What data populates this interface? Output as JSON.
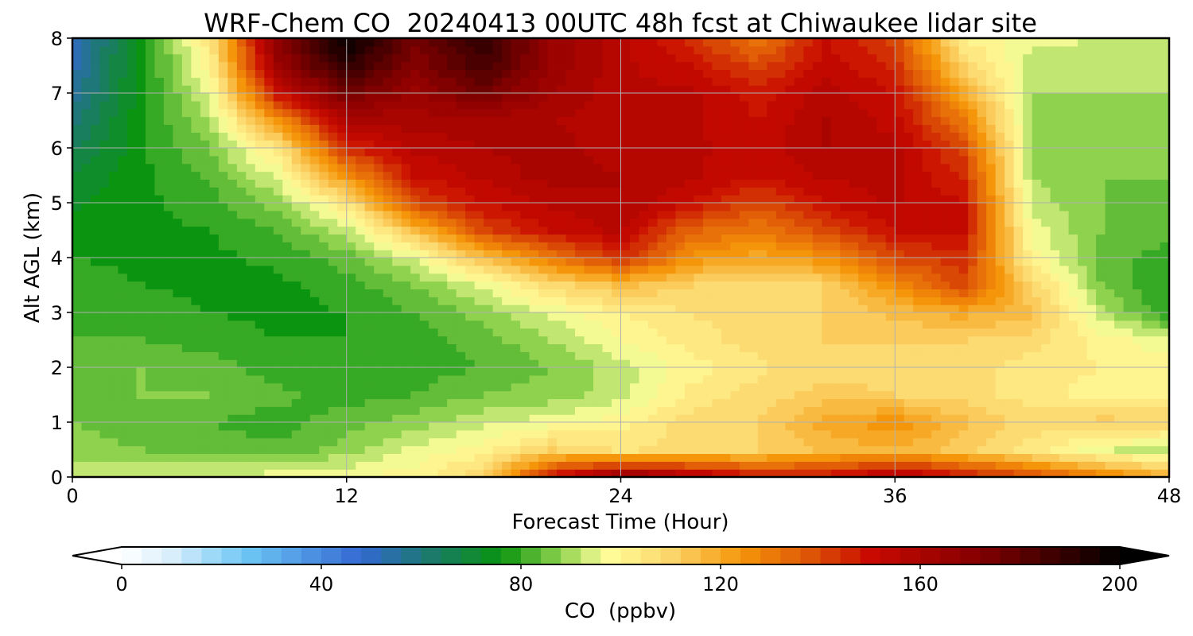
{
  "chart_data": {
    "type": "heatmap",
    "title": "WRF-Chem CO  20240413 00UTC 48h fcst at Chiwaukee lidar site",
    "xlabel": "Forecast Time (Hour)",
    "ylabel": "Alt AGL (km)",
    "xlim": [
      0,
      48
    ],
    "ylim": [
      0,
      8
    ],
    "x_ticks": [
      "0",
      "12",
      "24",
      "36",
      "48"
    ],
    "y_ticks": [
      "0",
      "1",
      "2",
      "3",
      "4",
      "5",
      "6",
      "7",
      "8"
    ],
    "grid": true,
    "x": [
      0,
      3,
      6,
      9,
      12,
      15,
      18,
      21,
      24,
      27,
      30,
      33,
      36,
      39,
      42,
      45,
      48
    ],
    "y": [
      0,
      0.5,
      1,
      1.5,
      2,
      2.5,
      3,
      3.5,
      4,
      4.5,
      5,
      5.5,
      6,
      6.5,
      7,
      7.5,
      8
    ],
    "z": [
      [
        95,
        95,
        95,
        96,
        98,
        100,
        110,
        150,
        170,
        160,
        150,
        150,
        160,
        150,
        140,
        130,
        120
      ],
      [
        88,
        86,
        84,
        83,
        88,
        95,
        100,
        110,
        105,
        108,
        110,
        115,
        118,
        112,
        104,
        95,
        90
      ],
      [
        86,
        84,
        82,
        80,
        84,
        88,
        93,
        96,
        100,
        108,
        110,
        120,
        125,
        115,
        108,
        112,
        110
      ],
      [
        84,
        86,
        86,
        83,
        80,
        82,
        86,
        88,
        92,
        103,
        108,
        112,
        110,
        108,
        104,
        100,
        102
      ],
      [
        84,
        86,
        84,
        80,
        78,
        80,
        82,
        86,
        92,
        100,
        105,
        108,
        108,
        108,
        104,
        102,
        100
      ],
      [
        82,
        82,
        80,
        78,
        78,
        80,
        84,
        90,
        98,
        104,
        108,
        110,
        110,
        110,
        108,
        100,
        95
      ],
      [
        82,
        80,
        78,
        77,
        78,
        82,
        88,
        95,
        102,
        106,
        108,
        110,
        115,
        120,
        115,
        92,
        78
      ],
      [
        80,
        78,
        77,
        77,
        80,
        86,
        95,
        108,
        115,
        110,
        108,
        110,
        125,
        140,
        110,
        86,
        78
      ],
      [
        78,
        77,
        77,
        79,
        84,
        95,
        115,
        130,
        145,
        125,
        120,
        125,
        140,
        145,
        100,
        84,
        80
      ],
      [
        77,
        77,
        78,
        82,
        92,
        115,
        140,
        150,
        155,
        135,
        130,
        140,
        150,
        150,
        96,
        86,
        84
      ],
      [
        73,
        77,
        80,
        88,
        105,
        140,
        150,
        155,
        158,
        150,
        140,
        150,
        155,
        150,
        92,
        86,
        85
      ],
      [
        70,
        77,
        83,
        95,
        125,
        150,
        155,
        160,
        158,
        155,
        150,
        155,
        155,
        145,
        90,
        86,
        86
      ],
      [
        65,
        77,
        86,
        105,
        145,
        155,
        158,
        160,
        155,
        155,
        152,
        158,
        155,
        140,
        90,
        87,
        88
      ],
      [
        60,
        77,
        90,
        125,
        158,
        160,
        160,
        158,
        155,
        155,
        150,
        158,
        152,
        130,
        90,
        88,
        89
      ],
      [
        55,
        76,
        95,
        150,
        175,
        165,
        175,
        162,
        155,
        155,
        148,
        156,
        150,
        120,
        90,
        90,
        90
      ],
      [
        52,
        76,
        100,
        165,
        190,
        170,
        185,
        165,
        155,
        150,
        140,
        152,
        145,
        110,
        92,
        92,
        92
      ],
      [
        50,
        75,
        105,
        170,
        200,
        175,
        190,
        165,
        155,
        145,
        130,
        150,
        140,
        102,
        95,
        94,
        94
      ]
    ],
    "colorbar": {
      "label": "CO  (ppbv)",
      "min": 0,
      "max": 200,
      "ticks": [
        "0",
        "40",
        "80",
        "120",
        "160",
        "200"
      ],
      "extend": "both",
      "colors": [
        {
          "v": 0,
          "c": "#ffffff"
        },
        {
          "v": 10,
          "c": "#d9eefb"
        },
        {
          "v": 25,
          "c": "#6cc6f5"
        },
        {
          "v": 48,
          "c": "#3468d2"
        },
        {
          "v": 62,
          "c": "#1b7a6a"
        },
        {
          "v": 76,
          "c": "#0a9410"
        },
        {
          "v": 88,
          "c": "#8fd24e"
        },
        {
          "v": 97,
          "c": "#ffff9c"
        },
        {
          "v": 110,
          "c": "#fcd56a"
        },
        {
          "v": 124,
          "c": "#f5960a"
        },
        {
          "v": 137,
          "c": "#e05a08"
        },
        {
          "v": 150,
          "c": "#c80a00"
        },
        {
          "v": 170,
          "c": "#8a0000"
        },
        {
          "v": 188,
          "c": "#380000"
        },
        {
          "v": 200,
          "c": "#000000"
        }
      ]
    }
  }
}
